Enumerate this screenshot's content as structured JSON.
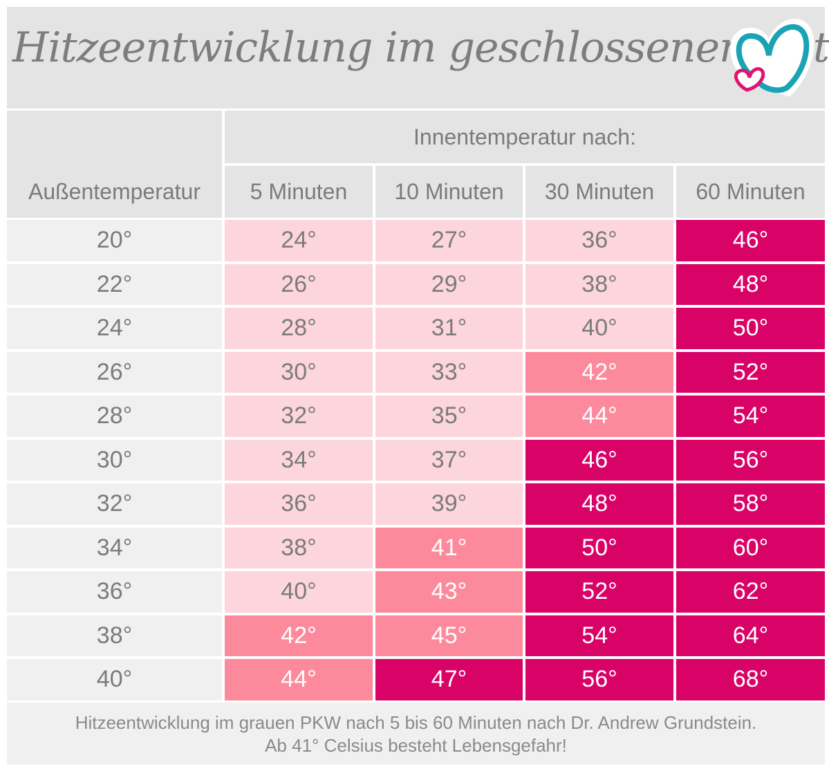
{
  "title": "Hitzeentwicklung im geschlossenen Auto",
  "logo": {
    "icon": "two-hearts-logo",
    "colors": {
      "large_heart": "#1aa3b5",
      "small_heart": "#e0146e"
    }
  },
  "header": {
    "row_label": "Außentemperatur",
    "group_label": "Innentemperatur nach:",
    "columns": [
      "5 Minuten",
      "10 Minuten",
      "30 Minuten",
      "60 Minuten"
    ]
  },
  "colors": {
    "safe": "#fdd5dc",
    "warning": "#fc8a9c",
    "danger": "#d90368",
    "header_bg": "#e4e4e4",
    "first_col_bg": "#f0f0f0"
  },
  "chart_data": {
    "type": "table",
    "title": "Hitzeentwicklung im geschlossenen Auto",
    "row_header": "Außentemperatur",
    "column_group": "Innentemperatur nach:",
    "columns": [
      "5 Minuten",
      "10 Minuten",
      "30 Minuten",
      "60 Minuten"
    ],
    "rows": [
      {
        "outside": "20°",
        "values": [
          "24°",
          "27°",
          "36°",
          "46°"
        ],
        "levels": [
          "safe",
          "safe",
          "safe",
          "danger"
        ]
      },
      {
        "outside": "22°",
        "values": [
          "26°",
          "29°",
          "38°",
          "48°"
        ],
        "levels": [
          "safe",
          "safe",
          "safe",
          "danger"
        ]
      },
      {
        "outside": "24°",
        "values": [
          "28°",
          "31°",
          "40°",
          "50°"
        ],
        "levels": [
          "safe",
          "safe",
          "safe",
          "danger"
        ]
      },
      {
        "outside": "26°",
        "values": [
          "30°",
          "33°",
          "42°",
          "52°"
        ],
        "levels": [
          "safe",
          "safe",
          "warning",
          "danger"
        ]
      },
      {
        "outside": "28°",
        "values": [
          "32°",
          "35°",
          "44°",
          "54°"
        ],
        "levels": [
          "safe",
          "safe",
          "warning",
          "danger"
        ]
      },
      {
        "outside": "30°",
        "values": [
          "34°",
          "37°",
          "46°",
          "56°"
        ],
        "levels": [
          "safe",
          "safe",
          "danger",
          "danger"
        ]
      },
      {
        "outside": "32°",
        "values": [
          "36°",
          "39°",
          "48°",
          "58°"
        ],
        "levels": [
          "safe",
          "safe",
          "danger",
          "danger"
        ]
      },
      {
        "outside": "34°",
        "values": [
          "38°",
          "41°",
          "50°",
          "60°"
        ],
        "levels": [
          "safe",
          "warning",
          "danger",
          "danger"
        ]
      },
      {
        "outside": "36°",
        "values": [
          "40°",
          "43°",
          "52°",
          "62°"
        ],
        "levels": [
          "safe",
          "warning",
          "danger",
          "danger"
        ]
      },
      {
        "outside": "38°",
        "values": [
          "42°",
          "45°",
          "54°",
          "64°"
        ],
        "levels": [
          "warning",
          "warning",
          "danger",
          "danger"
        ]
      },
      {
        "outside": "40°",
        "values": [
          "44°",
          "47°",
          "56°",
          "68°"
        ],
        "levels": [
          "warning",
          "danger",
          "danger",
          "danger"
        ]
      }
    ]
  },
  "footer": {
    "line1": "Hitzeentwicklung im grauen PKW nach 5 bis 60 Minuten nach Dr. Andrew Grundstein.",
    "line2": "Ab 41° Celsius besteht Lebensgefahr!"
  }
}
